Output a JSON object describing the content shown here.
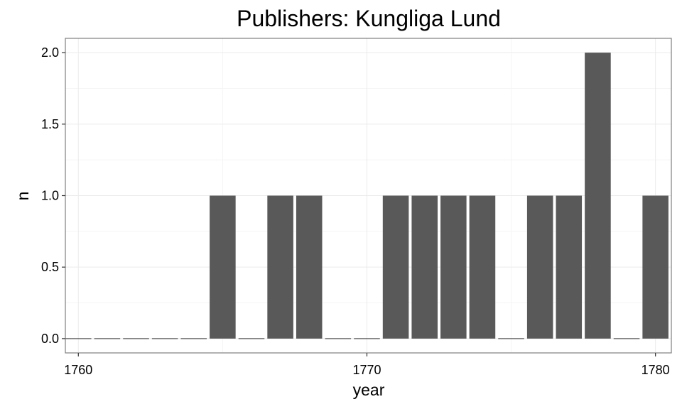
{
  "chart_data": {
    "type": "bar",
    "title": "Publishers: Kungliga Lund",
    "xlabel": "year",
    "ylabel": "n",
    "x": [
      1760,
      1761,
      1762,
      1763,
      1764,
      1765,
      1766,
      1767,
      1768,
      1769,
      1770,
      1771,
      1772,
      1773,
      1774,
      1775,
      1776,
      1777,
      1778,
      1779,
      1780
    ],
    "values": [
      0,
      0,
      0,
      0,
      0,
      1,
      0,
      1,
      1,
      0,
      0,
      1,
      1,
      1,
      1,
      0,
      1,
      1,
      2,
      0,
      1
    ],
    "xlim": [
      1759.55,
      1780.55
    ],
    "ylim": [
      -0.1,
      2.1
    ],
    "x_ticks": [
      1760,
      1770,
      1780
    ],
    "x_tick_labels": [
      "1760",
      "1770",
      "1780"
    ],
    "y_ticks": [
      0,
      0.5,
      1,
      1.5,
      2
    ],
    "y_tick_labels": [
      "0.0",
      "0.5",
      "1.0",
      "1.5",
      "2.0"
    ],
    "bar_color": "#595959",
    "grid": true,
    "legend": "none"
  }
}
